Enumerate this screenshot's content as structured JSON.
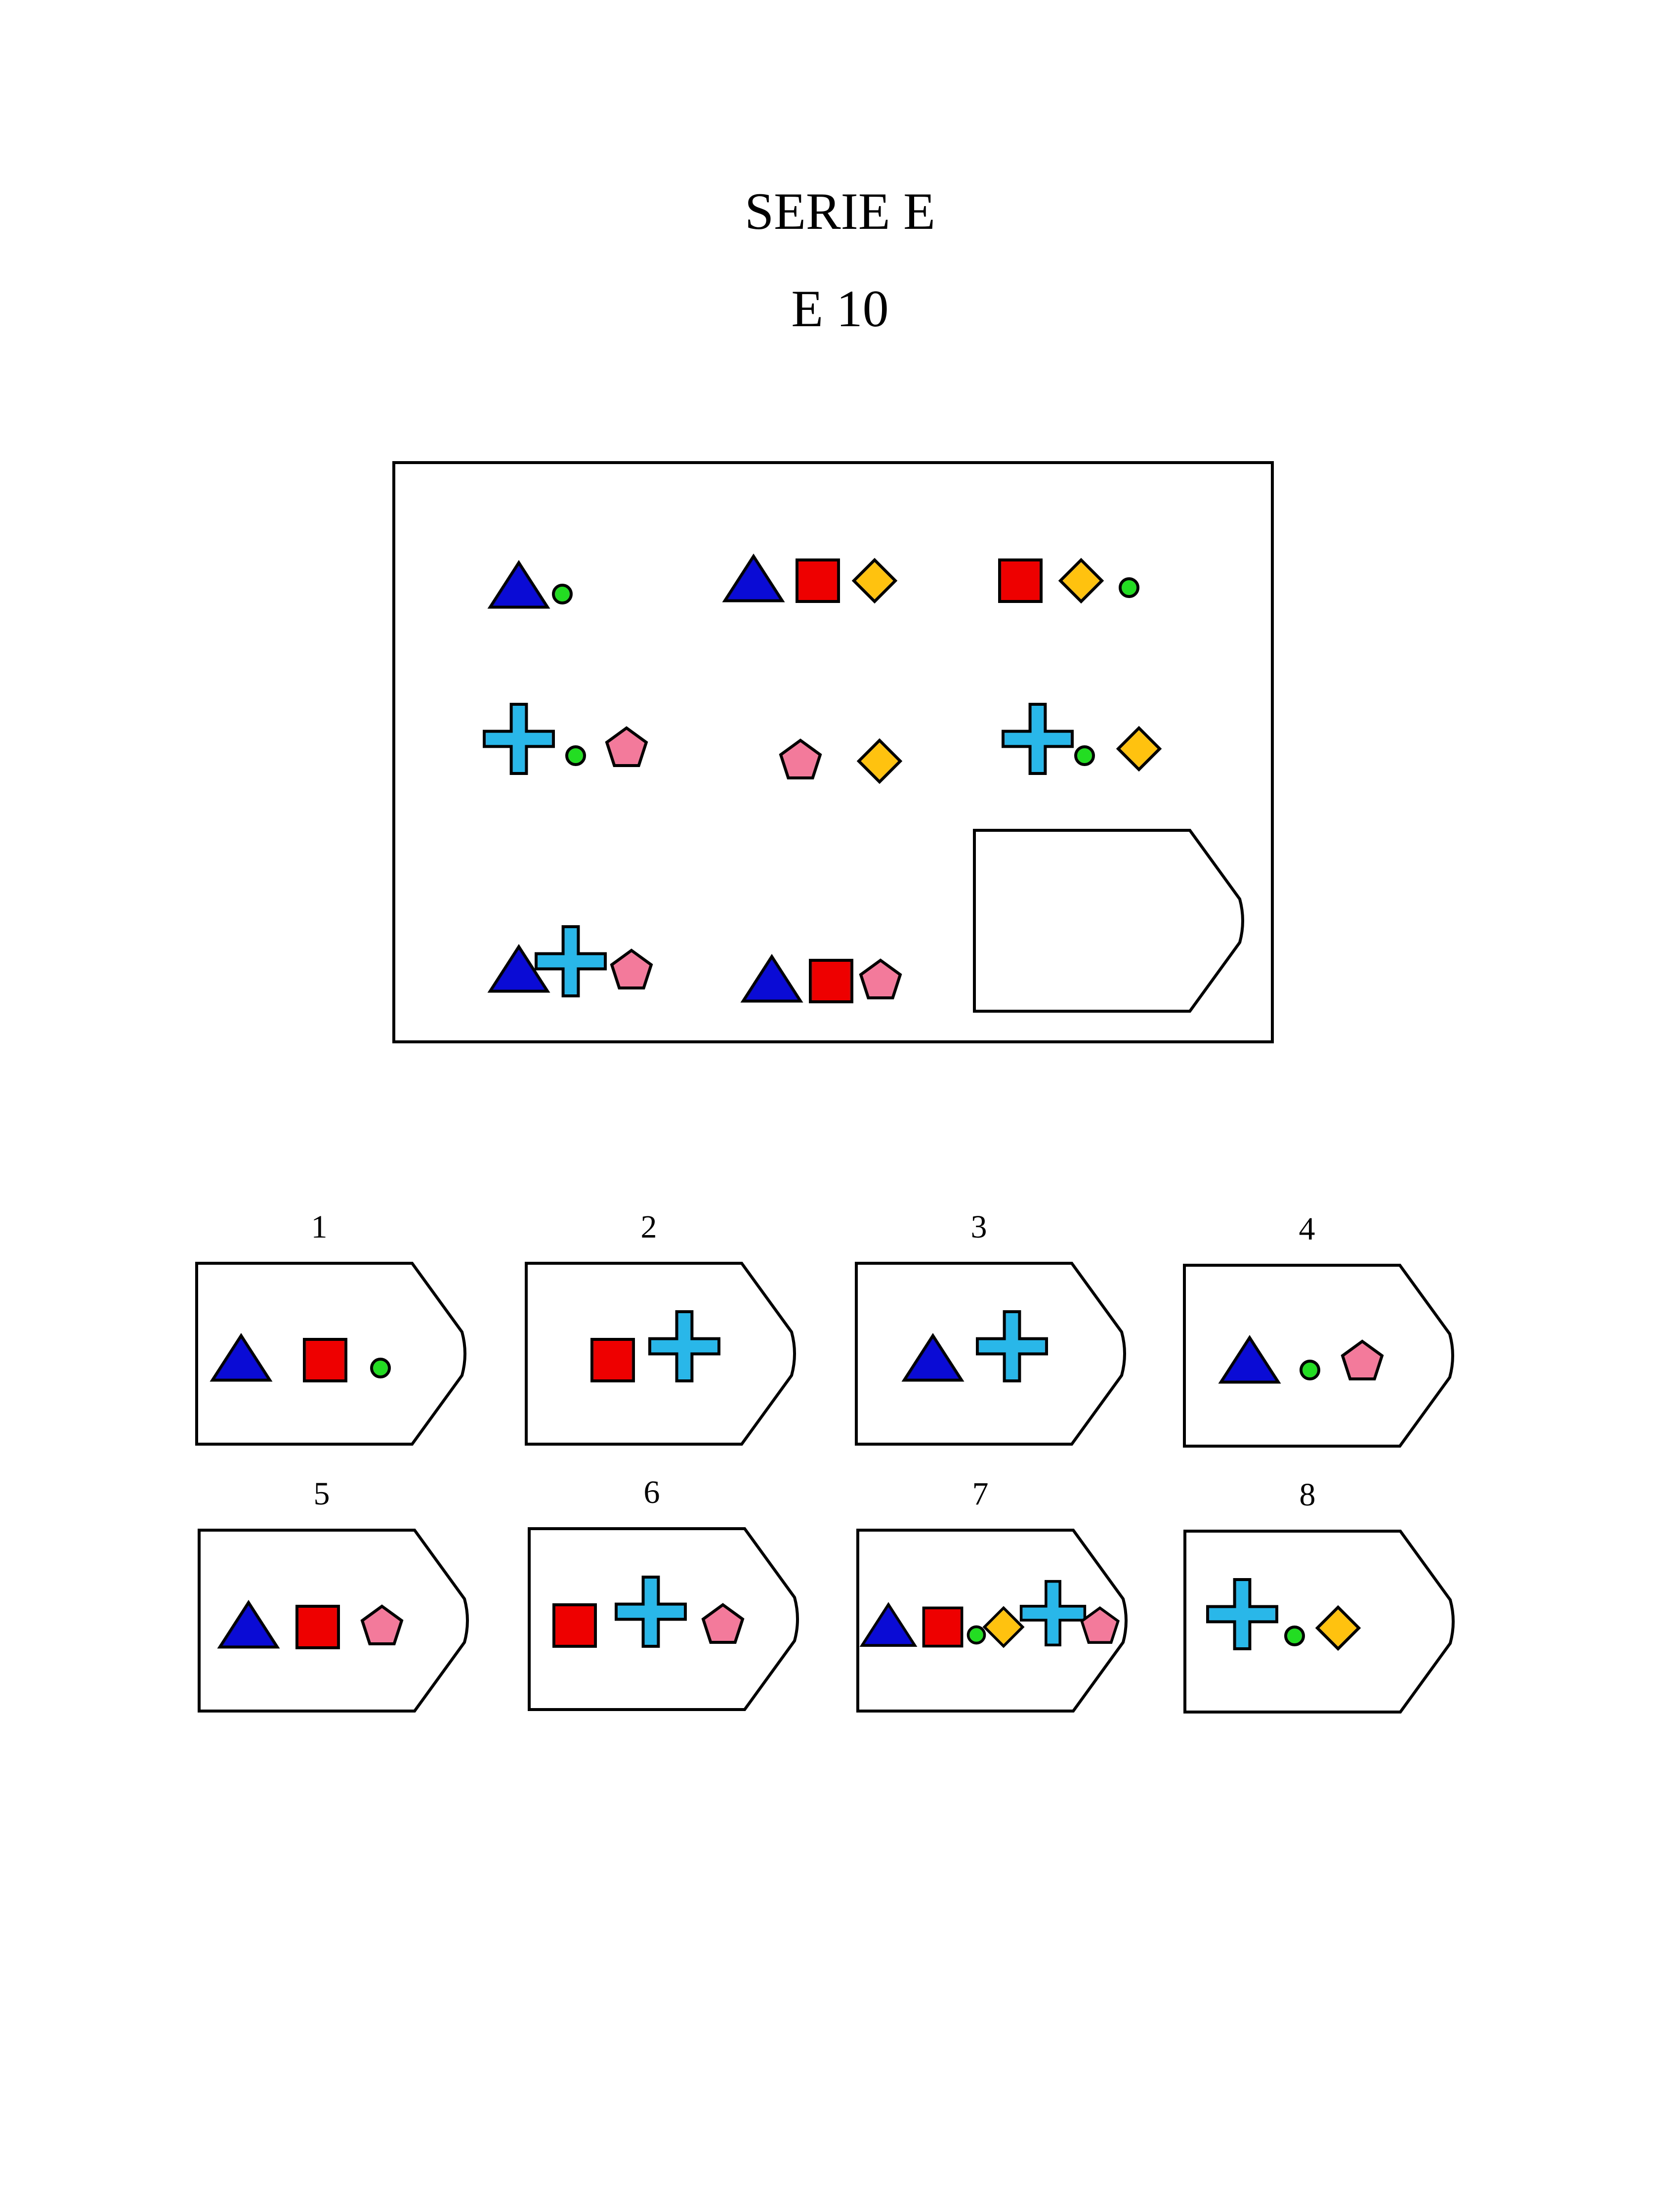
{
  "header": {
    "series": "SERIE E",
    "item": "E 10"
  },
  "colors": {
    "triangle": "#0b0bd6",
    "square": "#ee0000",
    "circle": "#22dd22",
    "diamond": "#ffc20e",
    "cross": "#29b6e8",
    "pentagon": "#f47a9b",
    "stroke": "#000000"
  },
  "matrix": {
    "cells": [
      [
        "triangle-icon",
        "circle-icon"
      ],
      [
        "triangle-icon",
        "square-icon",
        "diamond-icon"
      ],
      [
        "square-icon",
        "diamond-icon",
        "circle-icon"
      ],
      [
        "cross-icon",
        "circle-icon",
        "pentagon-icon"
      ],
      [
        "pentagon-icon",
        "diamond-icon"
      ],
      [
        "cross-icon",
        "circle-icon",
        "diamond-icon"
      ],
      [
        "triangle-icon",
        "cross-icon",
        "pentagon-icon"
      ],
      [
        "triangle-icon",
        "square-icon",
        "pentagon-icon"
      ]
    ],
    "missing_cell": true
  },
  "options": [
    {
      "label": "1",
      "shapes": [
        "triangle-icon",
        "square-icon",
        "circle-icon"
      ]
    },
    {
      "label": "2",
      "shapes": [
        "square-icon",
        "cross-icon"
      ]
    },
    {
      "label": "3",
      "shapes": [
        "triangle-icon",
        "cross-icon"
      ]
    },
    {
      "label": "4",
      "shapes": [
        "triangle-icon",
        "circle-icon",
        "pentagon-icon"
      ]
    },
    {
      "label": "5",
      "shapes": [
        "triangle-icon",
        "square-icon",
        "pentagon-icon"
      ]
    },
    {
      "label": "6",
      "shapes": [
        "square-icon",
        "cross-icon",
        "pentagon-icon"
      ]
    },
    {
      "label": "7",
      "shapes": [
        "triangle-icon",
        "square-icon",
        "circle-icon",
        "diamond-icon",
        "cross-icon",
        "pentagon-icon"
      ]
    },
    {
      "label": "8",
      "shapes": [
        "cross-icon",
        "circle-icon",
        "diamond-icon"
      ]
    }
  ]
}
